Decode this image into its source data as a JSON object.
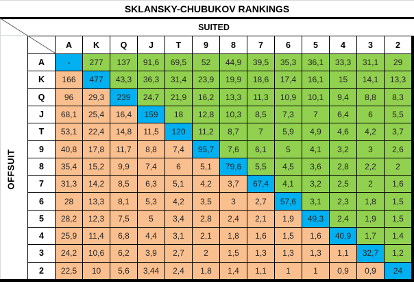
{
  "colors": {
    "pair": "#00B0F0",
    "suited": "#92D050",
    "offsuit": "#FABF8F",
    "border": "#000000"
  },
  "chart_data": {
    "type": "table",
    "title": "SKLANSKY-CHUBUKOV RANKINGS",
    "column_group_label": "SUITED",
    "row_group_label": "OFFSUIT",
    "columns": [
      "A",
      "K",
      "Q",
      "J",
      "T",
      "9",
      "8",
      "7",
      "6",
      "5",
      "4",
      "3",
      "2"
    ],
    "rows": [
      "A",
      "K",
      "Q",
      "J",
      "T",
      "9",
      "8",
      "7",
      "6",
      "5",
      "4",
      "3",
      "2"
    ],
    "cell_color_rule": "diagonal=pair(blue), above-diagonal=suited(green), below-diagonal=offsuit(orange)",
    "matrix": [
      [
        "-",
        "277",
        "137",
        "91,6",
        "69,5",
        "52",
        "44,9",
        "39,5",
        "35,3",
        "36,1",
        "33,3",
        "31,1",
        "29"
      ],
      [
        "166",
        "477",
        "43,3",
        "36,3",
        "31,4",
        "23,9",
        "19,9",
        "18,6",
        "17,4",
        "16,1",
        "15",
        "14,1",
        "13,3"
      ],
      [
        "96",
        "29,3",
        "239",
        "24,7",
        "21,9",
        "16,2",
        "13,3",
        "11,3",
        "10,9",
        "10,1",
        "9,4",
        "8,8",
        "8,3"
      ],
      [
        "68,1",
        "25,4",
        "16,4",
        "159",
        "18",
        "12,8",
        "10,3",
        "8,5",
        "7,3",
        "7",
        "6,4",
        "6",
        "5,5"
      ],
      [
        "53,1",
        "22,4",
        "14,8",
        "11,5",
        "120",
        "11,2",
        "8,7",
        "7",
        "5,9",
        "4,9",
        "4,6",
        "4,2",
        "3,7"
      ],
      [
        "40,8",
        "17,8",
        "11,7",
        "8,8",
        "7,4",
        "95,7",
        "7,6",
        "6,1",
        "5",
        "4,1",
        "3,2",
        "3",
        "2,6"
      ],
      [
        "35,4",
        "15,2",
        "9,9",
        "7,4",
        "6",
        "5,1",
        "79,6",
        "5,5",
        "4,5",
        "3,6",
        "2,8",
        "2,2",
        "2"
      ],
      [
        "31,3",
        "14,2",
        "8,5",
        "6,3",
        "5,1",
        "4,2",
        "3,7",
        "67,4",
        "4,1",
        "3,2",
        "2,5",
        "2",
        "1,6"
      ],
      [
        "28",
        "13,3",
        "8,1",
        "5,3",
        "4,2",
        "3,5",
        "3",
        "2,7",
        "57,6",
        "3,1",
        "2,3",
        "1,8",
        "1,5"
      ],
      [
        "28,2",
        "12,3",
        "7,5",
        "5",
        "3,4",
        "2,8",
        "2,4",
        "2,1",
        "1,9",
        "49,3",
        "2,4",
        "1,9",
        "1,5"
      ],
      [
        "25,9",
        "11,4",
        "6,8",
        "4,4",
        "3,1",
        "2,1",
        "1,8",
        "1,6",
        "1,5",
        "1,6",
        "40,9",
        "1,7",
        "1,4"
      ],
      [
        "24,2",
        "10,6",
        "6,2",
        "3,9",
        "2,7",
        "2",
        "1,5",
        "1,3",
        "1,3",
        "1,3",
        "1,1",
        "32,7",
        "1,2"
      ],
      [
        "22,5",
        "10",
        "5,6",
        "3,44",
        "2,4",
        "1,8",
        "1,4",
        "1,1",
        "1",
        "1",
        "0,9",
        "0,9",
        "24"
      ]
    ]
  }
}
